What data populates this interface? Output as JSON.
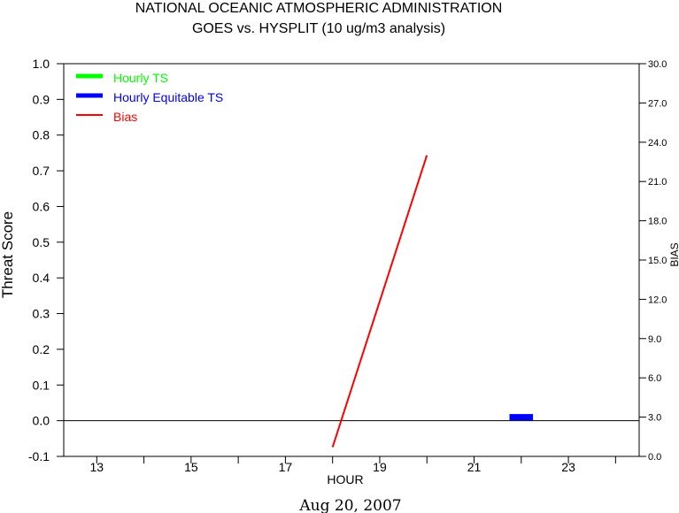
{
  "chart_data": {
    "type": "line",
    "title": "NATIONAL OCEANIC ATMOSPHERIC ADMINISTRATION",
    "subtitle": "GOES vs. HYSPLIT  (10 ug/m3 analysis)",
    "xlabel": "HOUR",
    "ylabel": "Threat Score",
    "y2label": "BIAS",
    "date_label": "Aug 20, 2007",
    "xlim": [
      12.3,
      24.5
    ],
    "ylim": [
      -0.1,
      1.0
    ],
    "y2lim": [
      0.0,
      30.0
    ],
    "x_ticks": [
      13,
      15,
      17,
      19,
      21,
      23
    ],
    "x_minor_ticks": [
      14,
      16,
      18,
      20,
      22,
      24
    ],
    "y_ticks": [
      "-0.1",
      "0.0",
      "0.1",
      "0.2",
      "0.3",
      "0.4",
      "0.5",
      "0.6",
      "0.7",
      "0.8",
      "0.9",
      "1.0"
    ],
    "y2_ticks": [
      "0.0",
      "3.0",
      "6.0",
      "9.0",
      "12.0",
      "15.0",
      "18.0",
      "21.0",
      "24.0",
      "27.0",
      "30.0"
    ],
    "zero_line": 0.0,
    "grid": false,
    "legend_position": "top-left",
    "series": [
      {
        "name": "Hourly TS",
        "color": "#00ff00",
        "axis": "left",
        "points": []
      },
      {
        "name": "Hourly Equitable TS",
        "color": "#0000ff",
        "axis": "left",
        "points": [
          [
            21.75,
            0.01
          ],
          [
            22.25,
            0.01
          ]
        ]
      },
      {
        "name": "Bias",
        "color": "#ff0000",
        "axis": "right",
        "points": [
          [
            18.0,
            0.7
          ],
          [
            20.0,
            23.0
          ]
        ]
      }
    ]
  }
}
